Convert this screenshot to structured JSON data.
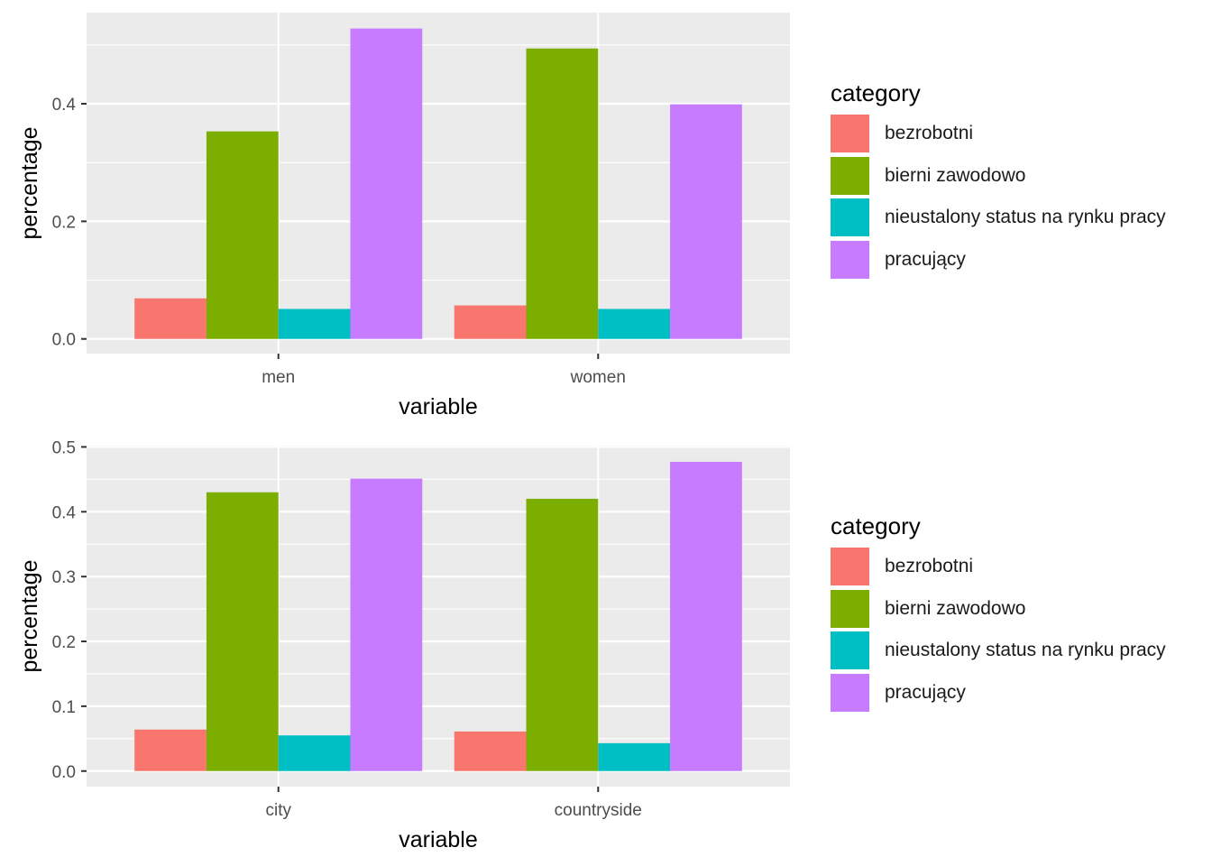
{
  "chart_data": [
    {
      "type": "bar",
      "categories": [
        "men",
        "women"
      ],
      "series": [
        {
          "name": "bezrobotni",
          "values": [
            0.069,
            0.057
          ]
        },
        {
          "name": "bierni zawodowo",
          "values": [
            0.353,
            0.494
          ]
        },
        {
          "name": "nieustalony status na rynku pracy",
          "values": [
            0.051,
            0.051
          ]
        },
        {
          "name": "pracujący",
          "values": [
            0.528,
            0.399
          ]
        }
      ],
      "xlabel": "variable",
      "ylabel": "percentage",
      "ylim": [
        -0.025,
        0.555
      ],
      "yticks": [
        0.0,
        0.2,
        0.4
      ],
      "ytick_labels": [
        "0.0",
        "0.2",
        "0.4"
      ],
      "ytick_minor": [
        0.1,
        0.3,
        0.5
      ],
      "grid": true,
      "legend": {
        "title": "category",
        "position": "right"
      }
    },
    {
      "type": "bar",
      "categories": [
        "city",
        "countryside"
      ],
      "series": [
        {
          "name": "bezrobotni",
          "values": [
            0.064,
            0.061
          ]
        },
        {
          "name": "bierni zawodowo",
          "values": [
            0.43,
            0.42
          ]
        },
        {
          "name": "nieustalony status na rynku pracy",
          "values": [
            0.055,
            0.043
          ]
        },
        {
          "name": "pracujący",
          "values": [
            0.451,
            0.477
          ]
        }
      ],
      "xlabel": "variable",
      "ylabel": "percentage",
      "ylim": [
        -0.024,
        0.502
      ],
      "yticks": [
        0.0,
        0.1,
        0.2,
        0.3,
        0.4,
        0.5
      ],
      "ytick_labels": [
        "0.0",
        "0.1",
        "0.2",
        "0.3",
        "0.4",
        "0.5"
      ],
      "ytick_minor": [
        0.05,
        0.15,
        0.25,
        0.35,
        0.45
      ],
      "grid": true,
      "legend": {
        "title": "category",
        "position": "right"
      }
    }
  ],
  "colors": {
    "bezrobotni": "#F8766D",
    "bierni zawodowo": "#7CAE00",
    "nieustalony status na rynku pracy": "#00BFC4",
    "pracujący": "#C77CFF",
    "panel_bg": "#EBEBEB",
    "grid": "#FFFFFF"
  }
}
